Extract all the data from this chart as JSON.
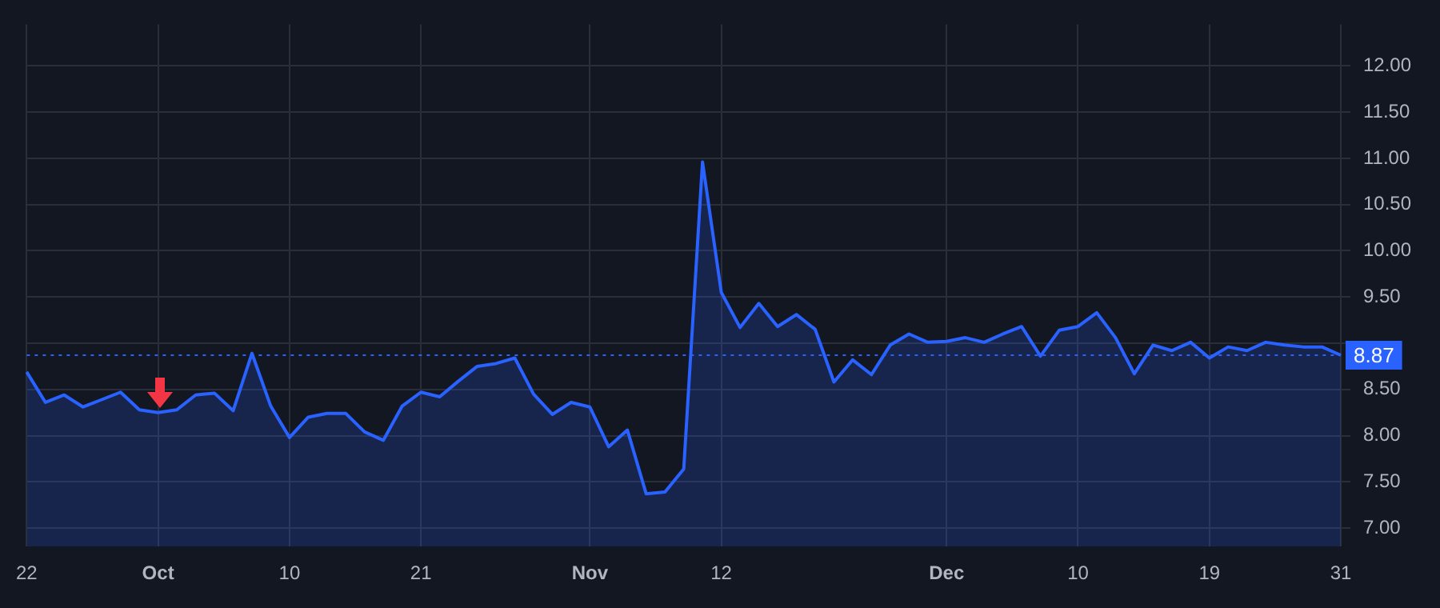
{
  "chart_data": {
    "type": "area",
    "categories": [
      "22",
      null,
      null,
      null,
      null,
      null,
      null,
      "Oct",
      null,
      null,
      null,
      null,
      null,
      null,
      "10",
      null,
      null,
      null,
      null,
      null,
      null,
      "21",
      null,
      null,
      null,
      null,
      null,
      null,
      null,
      null,
      "Nov",
      null,
      null,
      null,
      null,
      null,
      null,
      "12",
      null,
      null,
      null,
      null,
      null,
      null,
      null,
      null,
      null,
      null,
      null,
      "Dec",
      null,
      null,
      null,
      null,
      null,
      null,
      "10",
      null,
      null,
      null,
      null,
      null,
      null,
      "19",
      null,
      null,
      null,
      null,
      null,
      null,
      "31"
    ],
    "values": [
      8.69,
      8.36,
      8.44,
      8.31,
      8.39,
      8.47,
      8.28,
      8.25,
      8.28,
      8.44,
      8.46,
      8.27,
      8.89,
      8.32,
      7.98,
      8.2,
      8.24,
      8.24,
      8.04,
      7.95,
      8.32,
      8.47,
      8.42,
      8.59,
      8.75,
      8.78,
      8.84,
      8.45,
      8.23,
      8.36,
      8.31,
      7.88,
      8.06,
      7.37,
      7.39,
      7.64,
      10.96,
      9.55,
      9.17,
      9.43,
      9.18,
      9.31,
      9.15,
      8.58,
      8.82,
      8.66,
      8.98,
      9.1,
      9.01,
      9.02,
      9.06,
      9.01,
      9.1,
      9.18,
      8.86,
      9.14,
      9.18,
      9.33,
      9.06,
      8.67,
      8.98,
      8.92,
      9.01,
      8.84,
      8.96,
      8.92,
      9.01,
      8.98,
      8.96,
      8.96,
      8.87
    ],
    "color": "#2962ff",
    "ylim": [
      6.8,
      12.45
    ],
    "yticks": [
      {
        "value": 7,
        "label": "7.00"
      },
      {
        "value": 7.5,
        "label": "7.50"
      },
      {
        "value": 8,
        "label": "8.00"
      },
      {
        "value": 8.5,
        "label": "8.50"
      },
      {
        "value": 9,
        "label": null
      },
      {
        "value": 9.5,
        "label": "9.50"
      },
      {
        "value": 10,
        "label": "10.00"
      },
      {
        "value": 10.5,
        "label": "10.50"
      },
      {
        "value": 11,
        "label": "11.00"
      },
      {
        "value": 11.5,
        "label": "11.50"
      },
      {
        "value": 12,
        "label": "12.00"
      }
    ],
    "grid": true,
    "legend": false,
    "marker": "none",
    "ref_lines": [
      {
        "axis": "y",
        "value": 8.87,
        "label": "8.87",
        "color": "#2962ff",
        "line_style": "dotted"
      }
    ]
  }
}
